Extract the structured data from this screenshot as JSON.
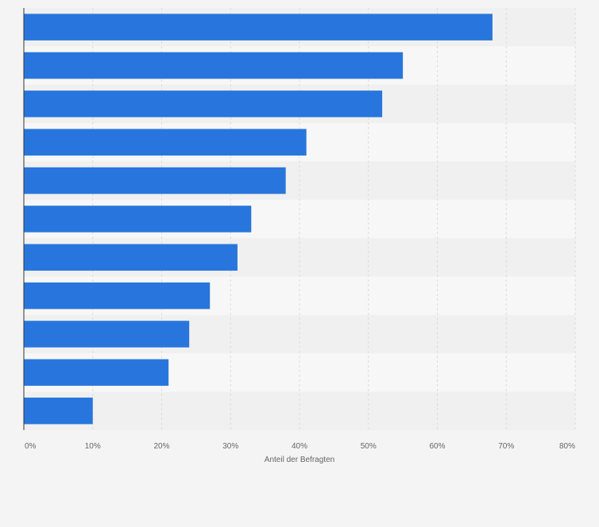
{
  "chart_data": {
    "type": "bar",
    "orientation": "horizontal",
    "categories": [
      "",
      "",
      "",
      "",
      "",
      "",
      "",
      "",
      "",
      "",
      ""
    ],
    "values": [
      68,
      55,
      52,
      41,
      38,
      33,
      31,
      27,
      24,
      21,
      10
    ],
    "xlabel": "Anteil der Befragten",
    "ylabel": "",
    "xlim": [
      0,
      80
    ],
    "x_ticks": [
      0,
      10,
      20,
      30,
      40,
      50,
      60,
      70,
      80
    ],
    "x_tick_labels": [
      "0%",
      "10%",
      "20%",
      "30%",
      "40%",
      "50%",
      "60%",
      "70%",
      "80%"
    ],
    "grid": "vertical",
    "legend": "none",
    "colors": {
      "bar": "#2876dd",
      "band_light": "#f7f7f7",
      "band_dark": "#f0f0f0",
      "grid": "#dcdcdc",
      "axis": "#333333",
      "text": "#666666"
    }
  }
}
